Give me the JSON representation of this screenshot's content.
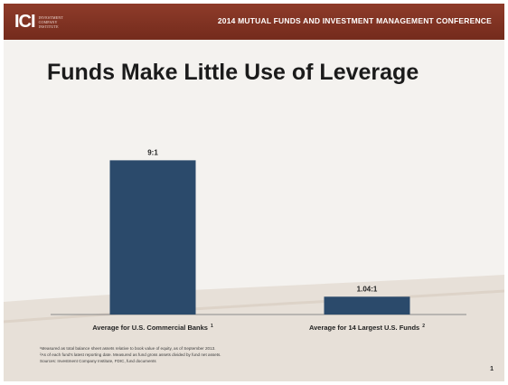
{
  "header": {
    "logo_text": "ICI",
    "logo_subtitle": "INVESTMENT COMPANY INSTITUTE",
    "conference": "2014 MUTUAL FUNDS AND INVESTMENT MANAGEMENT CONFERENCE",
    "band_color": "#7f3322"
  },
  "slide": {
    "title": "Funds Make Little Use of Leverage",
    "page_number": "1"
  },
  "chart_data": {
    "type": "bar",
    "title": "",
    "xlabel": "",
    "ylabel": "",
    "ylim": [
      0,
      9.6
    ],
    "grid": false,
    "categories": [
      "Average for U.S. Commercial Banks",
      "Average for 14 Largest U.S. Funds"
    ],
    "category_superscripts": [
      "1",
      "2"
    ],
    "values": [
      9,
      1.04
    ],
    "data_labels": [
      "9:1",
      "1.04:1"
    ],
    "bar_color": "#2b4a6b"
  },
  "footnotes": [
    "¹Measured as total balance sheet assets relative to book value of equity, as of September 2013.",
    "²As of each fund's latest reporting date. Measured as fund gross assets divided by fund net assets.",
    "Sources: Investment Company Institute, FDIC, fund documents"
  ]
}
